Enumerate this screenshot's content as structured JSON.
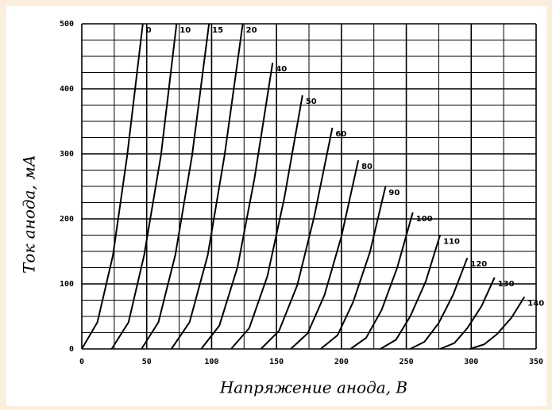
{
  "chart_data": {
    "type": "line",
    "xlabel": "Напряжение анода, В",
    "ylabel": "Ток анода, мА",
    "xlim": [
      0,
      350
    ],
    "ylim": [
      0,
      500
    ],
    "xticks": [
      0,
      50,
      100,
      150,
      200,
      250,
      300,
      350
    ],
    "yticks": [
      0,
      100,
      200,
      300,
      400,
      500
    ],
    "minor_xticks": [
      25,
      75,
      125,
      175,
      225,
      275,
      325
    ],
    "minor_yticks": [
      25,
      50,
      75,
      125,
      150,
      175,
      225,
      250,
      275,
      325,
      350,
      375,
      425,
      450,
      475
    ],
    "grid": true,
    "color": "#000000",
    "series": [
      {
        "name": "0",
        "x": [
          0,
          12,
          24,
          35,
          47
        ],
        "values": [
          0,
          41,
          144,
          298,
          500
        ]
      },
      {
        "name": "10",
        "x": [
          23,
          36,
          48,
          61,
          73
        ],
        "values": [
          0,
          41,
          144,
          298,
          500
        ]
      },
      {
        "name": "15",
        "x": [
          46,
          59,
          72,
          85,
          98
        ],
        "values": [
          0,
          41,
          144,
          298,
          500
        ]
      },
      {
        "name": "20",
        "x": [
          69,
          83,
          97,
          110,
          124
        ],
        "values": [
          0,
          41,
          144,
          298,
          500
        ]
      },
      {
        "name": "40",
        "x": [
          92,
          106,
          120,
          133,
          147
        ],
        "values": [
          0,
          36,
          126,
          262,
          440
        ]
      },
      {
        "name": "50",
        "x": [
          115,
          129,
          143,
          156,
          170
        ],
        "values": [
          0,
          32,
          112,
          232,
          390
        ]
      },
      {
        "name": "60",
        "x": [
          138,
          152,
          166,
          179,
          193
        ],
        "values": [
          0,
          28,
          98,
          203,
          340
        ]
      },
      {
        "name": "80",
        "x": [
          161,
          174,
          187,
          200,
          213
        ],
        "values": [
          0,
          24,
          83,
          173,
          290
        ]
      },
      {
        "name": "90",
        "x": [
          184,
          197,
          209,
          222,
          234
        ],
        "values": [
          0,
          21,
          72,
          149,
          250
        ]
      },
      {
        "name": "100",
        "x": [
          207,
          219,
          231,
          243,
          255
        ],
        "values": [
          0,
          17,
          60,
          125,
          210
        ]
      },
      {
        "name": "110",
        "x": [
          230,
          242,
          253,
          265,
          276
        ],
        "values": [
          0,
          14,
          50,
          104,
          175
        ]
      },
      {
        "name": "120",
        "x": [
          253,
          264,
          275,
          286,
          297
        ],
        "values": [
          0,
          11,
          40,
          83,
          140
        ]
      },
      {
        "name": "130",
        "x": [
          276,
          287,
          297,
          308,
          318
        ],
        "values": [
          0,
          9,
          32,
          66,
          110
        ]
      },
      {
        "name": "140",
        "x": [
          299,
          310,
          320,
          331,
          341
        ],
        "values": [
          0,
          7,
          23,
          48,
          80
        ]
      }
    ]
  }
}
